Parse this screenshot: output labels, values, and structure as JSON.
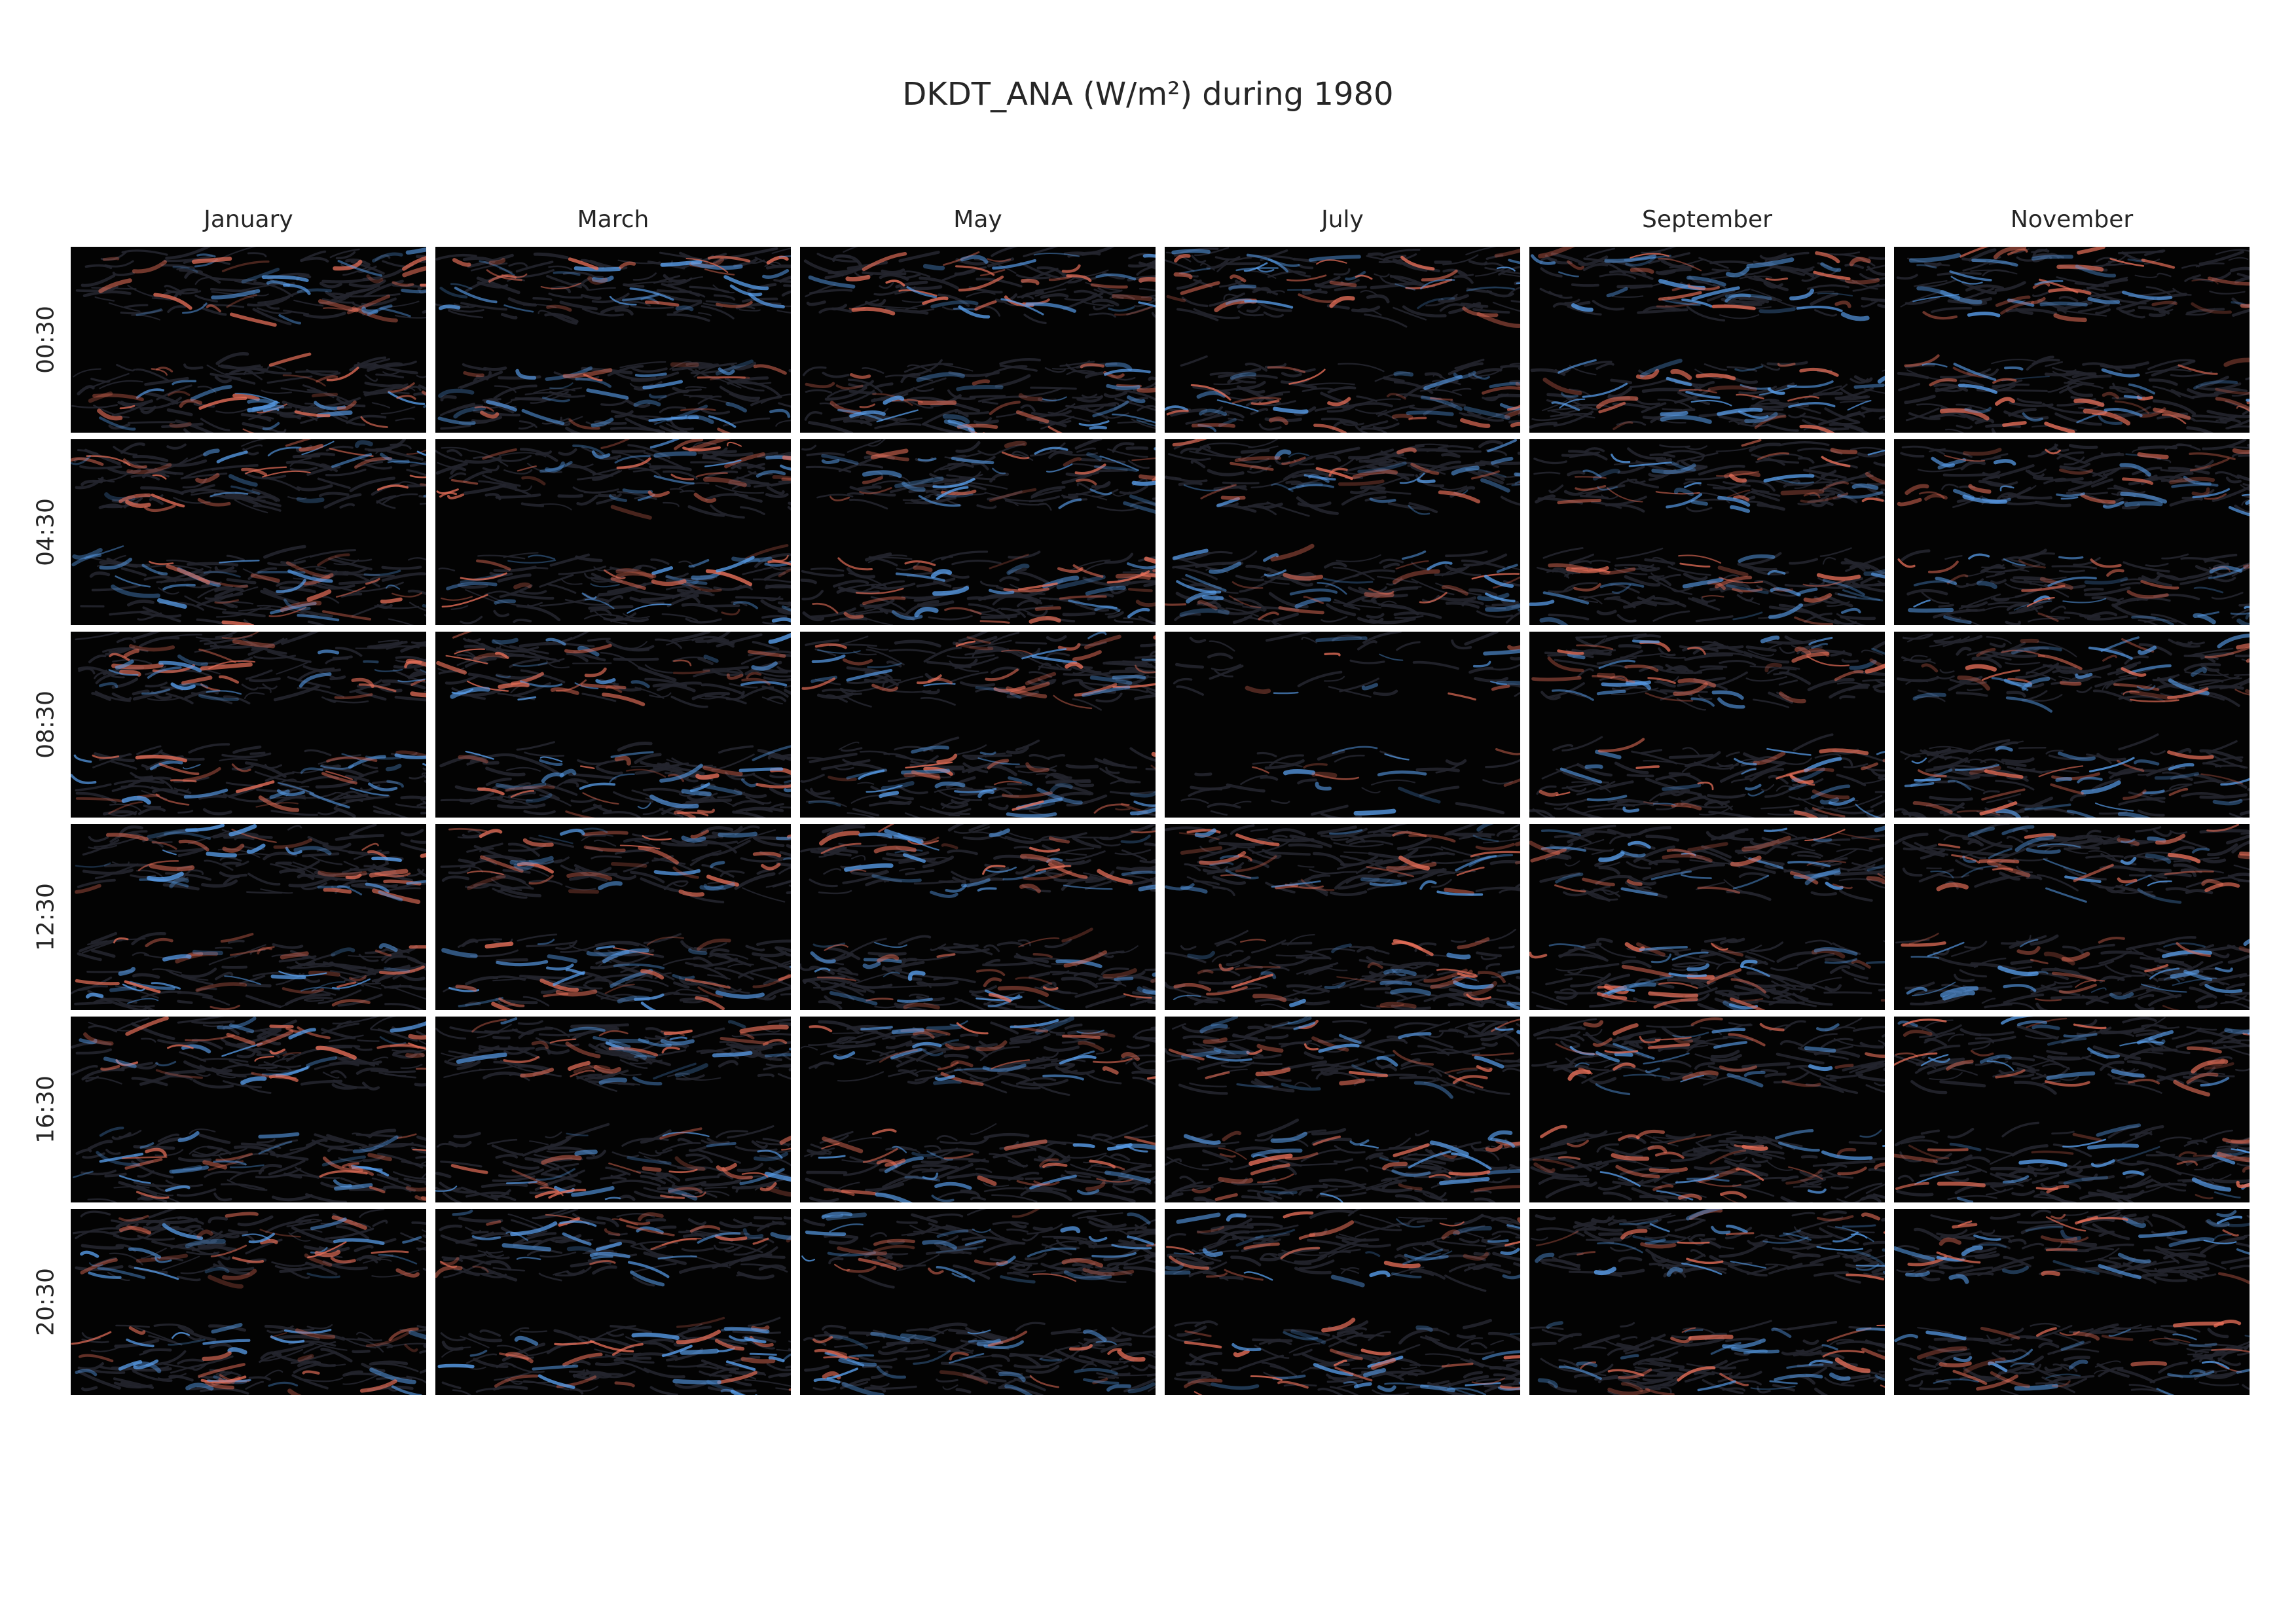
{
  "chart_data": {
    "type": "heatmap",
    "title": "DKDT_ANA (W/m²) during 1980",
    "columns": [
      "January",
      "March",
      "May",
      "July",
      "September",
      "November"
    ],
    "rows": [
      "00:30",
      "04:30",
      "08:30",
      "12:30",
      "16:30",
      "20:30"
    ],
    "colors": {
      "background": "#030303",
      "positive": "#e8705a",
      "negative": "#5aa0ee",
      "neutral_ridge": "#23252e"
    },
    "colorbar": false,
    "grid": false
  }
}
